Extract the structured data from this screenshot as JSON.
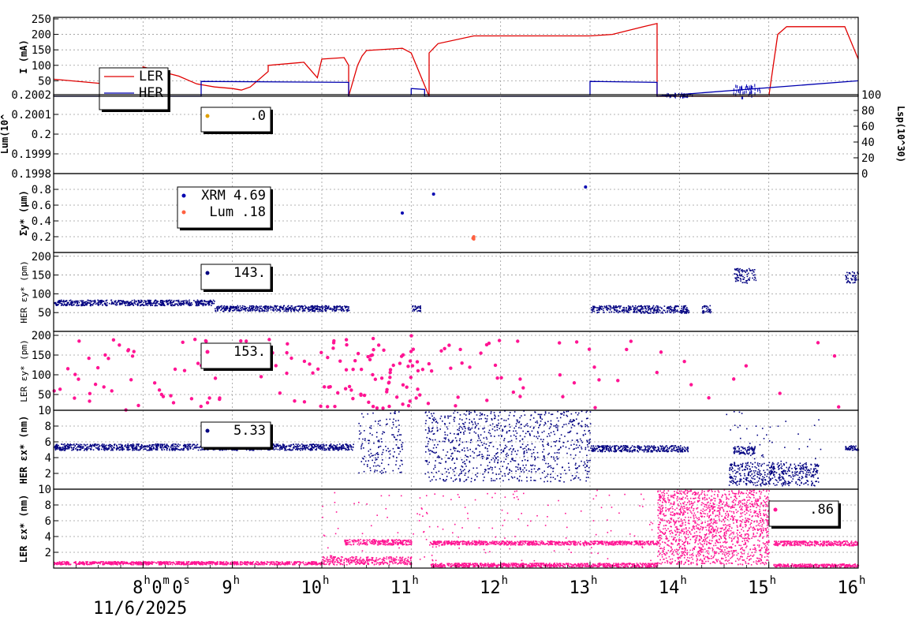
{
  "chart_data": [
    {
      "id": "current",
      "type": "line",
      "ylabel": "I (mA)",
      "ylim": [
        0,
        255
      ],
      "yticks": [
        "50",
        "100",
        "150",
        "200",
        "250"
      ],
      "legend": [
        "LER",
        "HER"
      ],
      "colors": {
        "LER": "#e00000",
        "HER": "#0000b0"
      },
      "series": [
        {
          "name": "LER",
          "x": [
            7.0,
            7.5,
            8.0,
            8.0,
            8.4,
            8.6,
            8.8,
            9.0,
            9.1,
            9.2,
            9.4,
            9.4,
            9.8,
            9.95,
            10.0,
            10.25,
            10.3,
            10.3,
            10.4,
            10.45,
            10.5,
            10.9,
            11.0,
            11.2,
            11.2,
            11.3,
            11.7,
            12.0,
            12.5,
            13.0,
            13.25,
            13.6,
            13.75,
            13.75,
            14.8,
            15.0,
            15.1,
            15.2,
            15.7,
            15.85,
            16.0
          ],
          "y": [
            55,
            42,
            30,
            95,
            65,
            40,
            30,
            25,
            20,
            30,
            80,
            100,
            110,
            60,
            120,
            125,
            100,
            0,
            100,
            130,
            148,
            155,
            140,
            0,
            140,
            170,
            195,
            195,
            195,
            195,
            200,
            225,
            235,
            0,
            0,
            0,
            200,
            225,
            225,
            225,
            120
          ]
        },
        {
          "name": "HER",
          "x": [
            7.0,
            8.65,
            8.65,
            10.3,
            10.3,
            11.0,
            11.0,
            11.15,
            11.15,
            13.0,
            13.0,
            13.75,
            13.75,
            16.0
          ],
          "y": [
            0,
            0,
            48,
            45,
            0,
            0,
            25,
            22,
            0,
            0,
            48,
            45,
            0,
            50
          ]
        }
      ]
    },
    {
      "id": "luminosity",
      "type": "scatter",
      "ylabel": "Lum(10^",
      "ylim": [
        0.1998,
        0.2002
      ],
      "yticks": [
        "0.1998",
        "0.1999",
        "0.2",
        "0.2001",
        "0.2002"
      ],
      "y2label": "Lsp(10^30)",
      "y2ticks": [
        "0",
        "20",
        "40",
        "60",
        "80",
        "100"
      ],
      "legend": [
        {
          "label": ".0",
          "color": "#e0a000"
        }
      ]
    },
    {
      "id": "sigma_y",
      "type": "scatter",
      "ylabel": "Σy* (μm)",
      "ylim": [
        0,
        1
      ],
      "yticks": [
        "0.2",
        "0.4",
        "0.6",
        "0.8"
      ],
      "legend": [
        {
          "label": "XRM 4.69",
          "color": "#0000b0"
        },
        {
          "label": "Lum  .18",
          "color": "#ff6040"
        }
      ],
      "series": [
        {
          "name": "XRM",
          "x": [
            10.9,
            11.25,
            12.95
          ],
          "y": [
            0.5,
            0.74,
            0.83
          ]
        },
        {
          "name": "Lum",
          "x": [
            11.7,
            11.7,
            11.7,
            11.69
          ],
          "y": [
            0.17,
            0.19,
            0.2,
            0.18
          ]
        }
      ]
    },
    {
      "id": "her_emit_y",
      "type": "scatter",
      "ylabel": "HER εy* (pm)",
      "ylim": [
        0,
        210
      ],
      "yticks": [
        "50",
        "100",
        "150",
        "200"
      ],
      "legend": [
        {
          "label": "143.",
          "color": "#000080"
        }
      ],
      "bands": [
        {
          "x0": 7.0,
          "x1": 8.8,
          "y0": 70,
          "y1": 85
        },
        {
          "x0": 8.8,
          "x1": 10.3,
          "y0": 55,
          "y1": 70
        },
        {
          "x0": 11.0,
          "x1": 11.1,
          "y0": 55,
          "y1": 70
        },
        {
          "x0": 13.0,
          "x1": 14.1,
          "y0": 50,
          "y1": 70
        },
        {
          "x0": 14.25,
          "x1": 14.35,
          "y0": 50,
          "y1": 70
        },
        {
          "x0": 14.6,
          "x1": 14.85,
          "y0": 130,
          "y1": 170
        },
        {
          "x0": 15.85,
          "x1": 16.0,
          "y0": 130,
          "y1": 160
        }
      ]
    },
    {
      "id": "ler_emit_y",
      "type": "scatter",
      "ylabel": "LER εy* (pm)",
      "ylim": [
        10,
        210
      ],
      "yticks": [
        "10",
        "50",
        "100",
        "150",
        "200"
      ],
      "legend": [
        {
          "label": "153.",
          "color": "#ff1493"
        }
      ],
      "scatter_ranges": [
        {
          "x0": 7.0,
          "x1": 10.0,
          "y0": 10,
          "y1": 190,
          "n": 70
        },
        {
          "x0": 10.0,
          "x1": 11.1,
          "y0": 10,
          "y1": 200,
          "n": 70
        },
        {
          "x0": 11.1,
          "x1": 13.2,
          "y0": 10,
          "y1": 190,
          "n": 35
        },
        {
          "x0": 13.2,
          "x1": 16.0,
          "y0": 10,
          "y1": 190,
          "n": 14
        }
      ]
    },
    {
      "id": "her_emit_x",
      "type": "scatter",
      "ylabel": "HER εx* (nm)",
      "ylim": [
        0,
        10
      ],
      "yticks": [
        "2",
        "4",
        "6",
        "8"
      ],
      "legend": [
        {
          "label": "5.33",
          "color": "#000080"
        }
      ],
      "bands": [
        {
          "x0": 7.0,
          "x1": 10.35,
          "y0": 5.0,
          "y1": 5.8
        },
        {
          "x0": 13.0,
          "x1": 14.1,
          "y0": 4.8,
          "y1": 5.6
        },
        {
          "x0": 14.6,
          "x1": 14.85,
          "y0": 4.5,
          "y1": 5.5
        },
        {
          "x0": 15.85,
          "x1": 16.0,
          "y0": 5.0,
          "y1": 5.6
        }
      ],
      "scatter_ranges": [
        {
          "x0": 10.4,
          "x1": 10.9,
          "y0": 2,
          "y1": 10,
          "n": 160
        },
        {
          "x0": 11.15,
          "x1": 13.0,
          "y0": 1,
          "y1": 10,
          "n": 900
        },
        {
          "x0": 14.55,
          "x1": 15.55,
          "y0": 0.5,
          "y1": 3.5,
          "n": 450
        },
        {
          "x0": 14.5,
          "x1": 15.6,
          "y0": 3,
          "y1": 10,
          "n": 40
        }
      ]
    },
    {
      "id": "ler_emit_x",
      "type": "scatter",
      "ylabel": "LER εx* (nm)",
      "ylim": [
        0,
        10
      ],
      "yticks": [
        "2",
        "4",
        "6",
        "8",
        "10"
      ],
      "legend": [
        {
          "label": ".86",
          "color": "#ff1493"
        }
      ],
      "bands": [
        {
          "x0": 7.0,
          "x1": 10.0,
          "y0": 0.5,
          "y1": 0.9
        },
        {
          "x0": 10.0,
          "x1": 11.0,
          "y0": 0.5,
          "y1": 1.5
        },
        {
          "x0": 10.25,
          "x1": 11.0,
          "y0": 3.0,
          "y1": 3.7
        },
        {
          "x0": 11.2,
          "x1": 13.75,
          "y0": 3.0,
          "y1": 3.5
        },
        {
          "x0": 11.2,
          "x1": 13.75,
          "y0": 0.2,
          "y1": 0.7
        },
        {
          "x0": 15.05,
          "x1": 16.0,
          "y0": 2.9,
          "y1": 3.5
        },
        {
          "x0": 15.05,
          "x1": 16.0,
          "y0": 0.2,
          "y1": 0.6
        }
      ],
      "scatter_ranges": [
        {
          "x0": 13.75,
          "x1": 15.0,
          "y0": 0.5,
          "y1": 10,
          "n": 1600
        },
        {
          "x0": 10.0,
          "x1": 13.7,
          "y0": 1,
          "y1": 10,
          "n": 150
        }
      ]
    }
  ],
  "x_axis": {
    "range": [
      7.0,
      16.0
    ],
    "ticks": [
      {
        "value": 8,
        "label": "8",
        "sup": "h",
        "extra": "0",
        "extra_sup": "m",
        "extra2": "0",
        "extra2_sup": "s"
      },
      {
        "value": 9,
        "label": "9",
        "sup": "h"
      },
      {
        "value": 10,
        "label": "10",
        "sup": "h"
      },
      {
        "value": 11,
        "label": "11",
        "sup": "h"
      },
      {
        "value": 12,
        "label": "12",
        "sup": "h"
      },
      {
        "value": 13,
        "label": "13",
        "sup": "h"
      },
      {
        "value": 14,
        "label": "14",
        "sup": "h"
      },
      {
        "value": 15,
        "label": "15",
        "sup": "h"
      },
      {
        "value": 16,
        "label": "16",
        "sup": "h"
      }
    ],
    "date": "11/6/2025"
  }
}
